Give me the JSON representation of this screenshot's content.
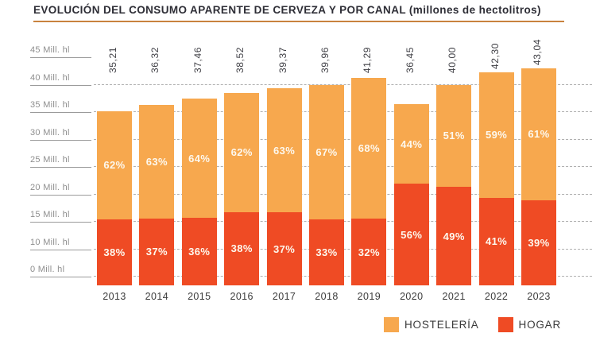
{
  "chart_data": {
    "type": "bar",
    "stacked": true,
    "title": "EVOLUCIÓN DEL CONSUMO APARENTE DE CERVEZA Y POR CANAL (millones de hectolitros)",
    "unit": "millones de hectolitros",
    "categories": [
      "2013",
      "2014",
      "2015",
      "2016",
      "2017",
      "2018",
      "2019",
      "2020",
      "2021",
      "2022",
      "2023"
    ],
    "totals": [
      35.21,
      36.32,
      37.46,
      38.52,
      39.37,
      39.96,
      41.29,
      36.45,
      40.0,
      42.3,
      43.04
    ],
    "total_labels": [
      "35,21",
      "36,32",
      "37,46",
      "38,52",
      "39,37",
      "39,96",
      "41,29",
      "36,45",
      "40,00",
      "42,30",
      "43,04"
    ],
    "series": [
      {
        "name": "HOSTELERÍA",
        "color": "#F7A84E",
        "values_pct": [
          62,
          63,
          64,
          62,
          63,
          67,
          68,
          44,
          51,
          59,
          61
        ]
      },
      {
        "name": "HOGAR",
        "color": "#EF4B24",
        "values_pct": [
          38,
          37,
          36,
          38,
          37,
          33,
          32,
          56,
          49,
          41,
          39
        ]
      }
    ],
    "y_axis": {
      "tick_labels": [
        "45 Mill. hl",
        "40 Mill. hl",
        "35 Mill. hl",
        "30 Mill. hl",
        "25 Mill. hl",
        "20 Mill. hl",
        "15 Mill. hl",
        "10 Mill. hl",
        "0 Mill. hl"
      ],
      "grid": "dashed"
    },
    "legend": {
      "position": "bottom-right",
      "items": [
        {
          "label": "HOSTELERÍA",
          "color": "#F7A84E"
        },
        {
          "label": "HOGAR",
          "color": "#EF4B24"
        }
      ]
    }
  },
  "colors": {
    "title_underline": "#C9823E",
    "axis_text": "#8E8E8E",
    "grid_line": "#B1B1B1",
    "value_text": "#3E3E44",
    "pct_text": "#FDF8EE"
  }
}
